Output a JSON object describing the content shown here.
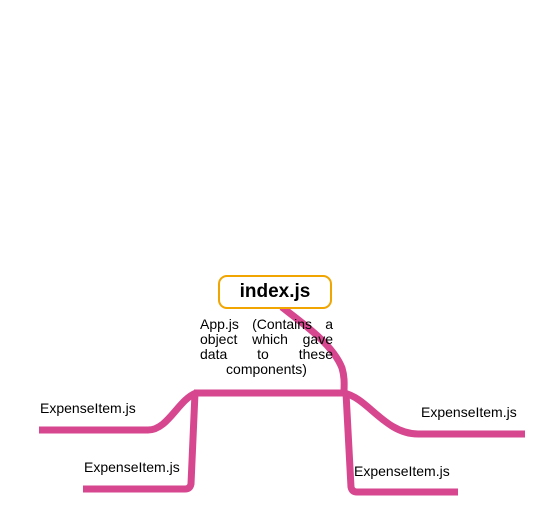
{
  "diagram": {
    "root": {
      "label": "index.js"
    },
    "branch": {
      "label": "App.js (Contains a object which gave data to these components)"
    },
    "leaves": [
      {
        "label": "ExpenseItem.js"
      },
      {
        "label": "ExpenseItem.js"
      },
      {
        "label": "ExpenseItem.js"
      },
      {
        "label": "ExpenseItem.js"
      }
    ],
    "colors": {
      "branch_line": "#d6478f",
      "root_border": "#f0a500",
      "text": "#000000",
      "background": "#ffffff"
    }
  }
}
